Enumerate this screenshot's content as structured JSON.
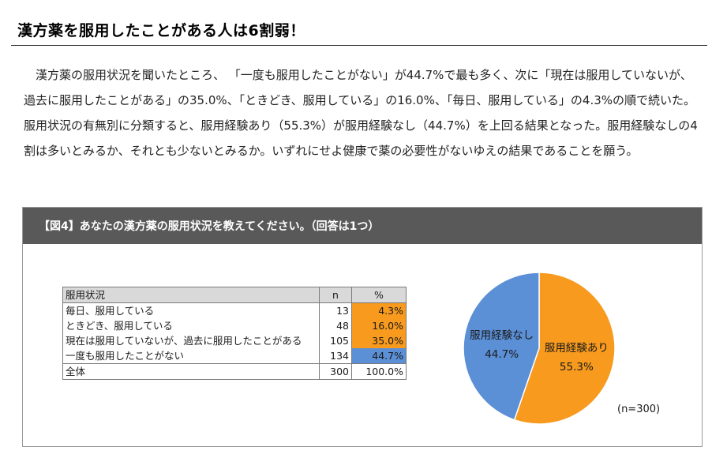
{
  "headline": "漢方薬を服用したことがある人は6割弱！",
  "paragraph": "漢方薬の服用状況を聞いたところ、 「一度も服用したことがない」が44.7%で最も多く、次に「現在は服用していないが、過去に服用したことがある」の35.0%、「ときどき、服用している」の16.0%、「毎日、服用している」の4.3%の順で続いた。服用状況の有無別に分類すると、服用経験あり（55.3%）が服用経験なし（44.7%）を上回る結果となった。服用経験なしの4割は多いとみるか、それとも少ないとみるか。いずれにせよ健康で薬の必要性がないゆえの結果であることを願う。",
  "figure": {
    "title": "【図4】あなたの漢方薬の服用状況を教えてください。（回答は1つ）",
    "table": {
      "headers": [
        "服用状況",
        "n",
        "%"
      ],
      "rows": [
        {
          "label": "毎日、服用している",
          "n": "13",
          "pct": "4.3%",
          "fill": "orange"
        },
        {
          "label": "ときどき、服用している",
          "n": "48",
          "pct": "16.0%",
          "fill": "orange"
        },
        {
          "label": "現在は服用していないが、過去に服用したことがある",
          "n": "105",
          "pct": "35.0%",
          "fill": "orange"
        },
        {
          "label": "一度も服用したことがない",
          "n": "134",
          "pct": "44.7%",
          "fill": "blue"
        }
      ],
      "total": {
        "label": "全体",
        "n": "300",
        "pct": "100.0%"
      }
    },
    "n_note": "(n=300)"
  },
  "colors": {
    "orange": "#f79a1e",
    "blue": "#5b8fd6",
    "header_bg": "#595959"
  },
  "chart_data": {
    "type": "pie",
    "title": "",
    "slices": [
      {
        "name": "服用経験あり",
        "value": 55.3,
        "label": "55.3%",
        "color": "#f79a1e"
      },
      {
        "name": "服用経験なし",
        "value": 44.7,
        "label": "44.7%",
        "color": "#5b8fd6"
      }
    ],
    "start": "12 o'clock",
    "direction": "clockwise"
  }
}
